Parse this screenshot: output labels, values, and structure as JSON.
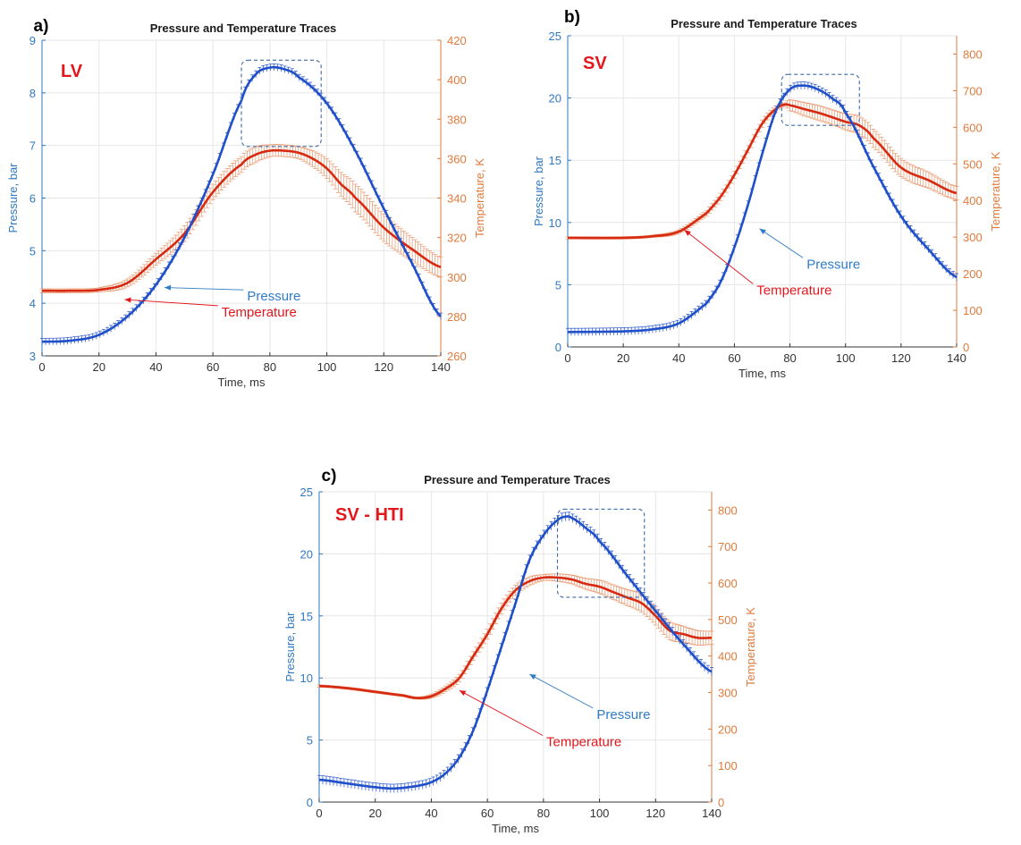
{
  "colors": {
    "pressure": "#1f4fc9",
    "pressure_axis": "#2f79c2",
    "temperature": "#d62a12",
    "temperature_axis": "#e07a3c",
    "errorbar": "#e8956a",
    "grid": "#e6e6e6",
    "box": "#3c6aa6",
    "annotation_pressure": "#2f7cc7",
    "annotation_temperature": "#e3161b"
  },
  "chart_data": [
    {
      "panel": "a)",
      "type": "line",
      "title": "Pressure and Temperature Traces",
      "tag": "LV",
      "xlabel": "Time, ms",
      "ylabel_left": "Pressure, bar",
      "ylabel_right": "Temperature, K",
      "xlim": [
        0,
        140
      ],
      "ylim_left": [
        3,
        9
      ],
      "ylim_right": [
        260,
        420
      ],
      "x_ticks": [
        "0",
        "20",
        "40",
        "60",
        "80",
        "100",
        "120",
        "140"
      ],
      "y_left_ticks": [
        "3",
        "4",
        "5",
        "6",
        "7",
        "8",
        "9"
      ],
      "y_right_ticks": [
        "260",
        "280",
        "300",
        "320",
        "340",
        "360",
        "380",
        "400",
        "420"
      ],
      "grid": true,
      "highlight_box": {
        "x": [
          70,
          98
        ],
        "y_left": [
          6.98,
          8.62
        ]
      },
      "annotations": [
        {
          "text": "Pressure",
          "series": "pressure",
          "label_at": [
            72,
            4.05
          ],
          "arrow_to": [
            43,
            4.3
          ]
        },
        {
          "text": "Temperature",
          "series": "temperature",
          "label_at": [
            63,
            3.75
          ],
          "arrow_to": [
            29,
            4.07
          ]
        }
      ],
      "series": [
        {
          "name": "Pressure",
          "axis": "left",
          "x": [
            0,
            10,
            20,
            30,
            40,
            50,
            60,
            70,
            75,
            80,
            85,
            90,
            100,
            110,
            120,
            130,
            140
          ],
          "y": [
            3.27,
            3.29,
            3.4,
            3.75,
            4.35,
            5.25,
            6.45,
            7.85,
            8.35,
            8.48,
            8.45,
            8.3,
            7.8,
            6.9,
            5.8,
            4.75,
            3.75
          ],
          "error": [
            0.03,
            0.03,
            0.03,
            0.03,
            0.03,
            0.03,
            0.03,
            0.03,
            0.03,
            0.03,
            0.03,
            0.03,
            0.03,
            0.03,
            0.03,
            0.03,
            0.03
          ]
        },
        {
          "name": "Temperature",
          "axis": "right",
          "x": [
            0,
            10,
            20,
            30,
            40,
            50,
            60,
            70,
            75,
            80,
            85,
            90,
            95,
            100,
            105,
            110,
            120,
            130,
            140
          ],
          "y": [
            293,
            293,
            293.5,
            297,
            309,
            322,
            343,
            357,
            362,
            364,
            364,
            363,
            360,
            355,
            347,
            340,
            325,
            314,
            305
          ],
          "error": [
            1,
            1,
            1,
            2,
            3,
            4,
            4,
            4,
            4,
            3,
            3,
            3,
            4,
            5,
            6,
            7,
            7,
            6,
            5
          ]
        }
      ]
    },
    {
      "panel": "b)",
      "type": "line",
      "title": "Pressure and Temperature Traces",
      "tag": "SV",
      "xlabel": "Time, ms",
      "ylabel_left": "Pressure, bar",
      "ylabel_right": "Temperature, K",
      "xlim": [
        0,
        140
      ],
      "ylim_left": [
        0,
        25
      ],
      "ylim_right": [
        0,
        850
      ],
      "x_ticks": [
        "0",
        "20",
        "40",
        "60",
        "80",
        "100",
        "120",
        "140"
      ],
      "y_left_ticks": [
        "0",
        "5",
        "10",
        "15",
        "20",
        "25"
      ],
      "y_right_ticks": [
        "0",
        "100",
        "200",
        "300",
        "400",
        "500",
        "600",
        "700",
        "800"
      ],
      "grid": true,
      "highlight_box": {
        "x": [
          77,
          105
        ],
        "y_left": [
          17.8,
          21.9
        ]
      },
      "annotations": [
        {
          "text": "Pressure",
          "series": "pressure",
          "label_at": [
            86,
            6.3
          ],
          "arrow_to": [
            69,
            9.5
          ]
        },
        {
          "text": "Temperature",
          "series": "temperature",
          "label_at": [
            68,
            4.2
          ],
          "arrow_to": [
            42,
            9.4
          ]
        }
      ],
      "series": [
        {
          "name": "Pressure",
          "axis": "left",
          "x": [
            0,
            20,
            30,
            40,
            50,
            55,
            60,
            65,
            70,
            75,
            80,
            85,
            90,
            95,
            100,
            110,
            120,
            130,
            140
          ],
          "y": [
            1.2,
            1.25,
            1.4,
            1.9,
            3.5,
            5.2,
            8,
            11.5,
            15.5,
            19,
            20.7,
            21,
            20.7,
            20,
            18.8,
            14.5,
            10.5,
            7.8,
            5.6
          ],
          "error": [
            0.15,
            0.15,
            0.15,
            0.15,
            0.15,
            0.15,
            0.15,
            0.15,
            0.15,
            0.15,
            0.15,
            0.15,
            0.15,
            0.15,
            0.15,
            0.15,
            0.15,
            0.15,
            0.15
          ]
        },
        {
          "name": "Temperature",
          "axis": "right",
          "x": [
            0,
            20,
            30,
            40,
            50,
            55,
            60,
            65,
            70,
            75,
            78,
            80,
            85,
            90,
            95,
            100,
            105,
            110,
            120,
            130,
            140
          ],
          "y": [
            298,
            298,
            302,
            315,
            365,
            410,
            470,
            540,
            610,
            650,
            662,
            660,
            650,
            640,
            628,
            615,
            605,
            570,
            490,
            455,
            420
          ],
          "error": [
            3,
            3,
            3,
            5,
            8,
            10,
            10,
            10,
            10,
            8,
            5,
            15,
            18,
            20,
            20,
            22,
            25,
            25,
            25,
            22,
            18
          ]
        }
      ]
    },
    {
      "panel": "c)",
      "type": "line",
      "title": "Pressure and Temperature Traces",
      "tag": "SV - HTI",
      "xlabel": "Time, ms",
      "ylabel_left": "Pressure, bar",
      "ylabel_right": "Temperature, K",
      "xlim": [
        0,
        140
      ],
      "ylim_left": [
        0,
        25
      ],
      "ylim_right": [
        0,
        850
      ],
      "x_ticks": [
        "0",
        "20",
        "40",
        "60",
        "80",
        "100",
        "120",
        "140"
      ],
      "y_left_ticks": [
        "0",
        "5",
        "10",
        "15",
        "20",
        "25"
      ],
      "y_right_ticks": [
        "0",
        "100",
        "200",
        "300",
        "400",
        "500",
        "600",
        "700",
        "800"
      ],
      "grid": true,
      "highlight_box": {
        "x": [
          85,
          116
        ],
        "y_left": [
          16.5,
          23.6
        ]
      },
      "annotations": [
        {
          "text": "Pressure",
          "series": "pressure",
          "label_at": [
            99,
            6.7
          ],
          "arrow_to": [
            75,
            10.3
          ]
        },
        {
          "text": "Temperature",
          "series": "temperature",
          "label_at": [
            81,
            4.5
          ],
          "arrow_to": [
            50,
            9
          ]
        }
      ],
      "series": [
        {
          "name": "Pressure",
          "axis": "left",
          "x": [
            0,
            10,
            20,
            27,
            35,
            40,
            45,
            50,
            55,
            60,
            65,
            70,
            75,
            80,
            85,
            88,
            90,
            95,
            100,
            110,
            120,
            130,
            140
          ],
          "y": [
            1.8,
            1.5,
            1.2,
            1.1,
            1.3,
            1.6,
            2.3,
            3.6,
            5.8,
            9,
            12.5,
            16,
            19.5,
            21.5,
            22.7,
            23,
            22.9,
            22.1,
            21,
            18.2,
            15.4,
            12.7,
            10.5
          ],
          "error": [
            0.2,
            0.2,
            0.2,
            0.2,
            0.2,
            0.2,
            0.2,
            0.2,
            0.2,
            0.2,
            0.2,
            0.2,
            0.2,
            0.2,
            0.2,
            0.2,
            0.2,
            0.2,
            0.2,
            0.2,
            0.2,
            0.2,
            0.2
          ]
        },
        {
          "name": "Temperature",
          "axis": "right",
          "x": [
            0,
            10,
            20,
            30,
            35,
            40,
            45,
            50,
            55,
            60,
            65,
            70,
            75,
            80,
            85,
            90,
            95,
            100,
            105,
            110,
            115,
            120,
            125,
            130,
            135,
            140
          ],
          "y": [
            318,
            312,
            302,
            292,
            285,
            290,
            310,
            340,
            400,
            460,
            530,
            580,
            605,
            615,
            615,
            610,
            598,
            590,
            575,
            560,
            545,
            510,
            470,
            460,
            450,
            450
          ],
          "error": [
            3,
            3,
            3,
            3,
            3,
            5,
            8,
            10,
            12,
            14,
            15,
            14,
            12,
            8,
            10,
            12,
            15,
            18,
            20,
            22,
            25,
            25,
            25,
            22,
            20,
            18
          ]
        }
      ]
    }
  ]
}
